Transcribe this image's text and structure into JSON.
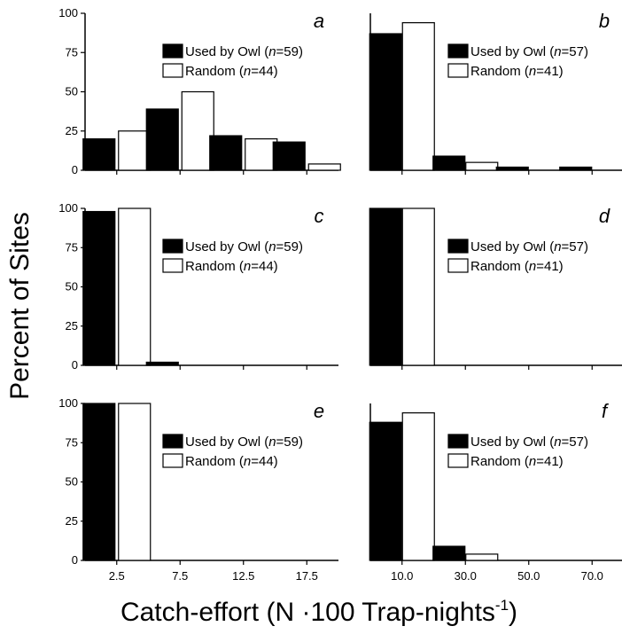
{
  "figure": {
    "ylabel": "Percent of Sites",
    "xlabel_main": "Catch-effort (N ·100 Trap-nights",
    "xlabel_exp": "-1",
    "xlabel_close": ")"
  },
  "chart_data": [
    {
      "type": "bar",
      "panel": "a",
      "categories": [
        "2.5",
        "7.5",
        "12.5",
        "17.5"
      ],
      "series": [
        {
          "name": "Used by Owl",
          "n_label": "(n=59)",
          "color": "#000000",
          "values": [
            20,
            39,
            22,
            18
          ]
        },
        {
          "name": "Random",
          "n_label": "(n=44)",
          "color": "#ffffff",
          "values": [
            25,
            50,
            20,
            4
          ]
        }
      ],
      "ylim": [
        0,
        100
      ],
      "yticks": [
        "0",
        "25",
        "50",
        "75",
        "100"
      ],
      "show_xticklabels": false
    },
    {
      "type": "bar",
      "panel": "b",
      "categories": [
        "10.0",
        "30.0",
        "50.0",
        "70.0"
      ],
      "series": [
        {
          "name": "Used by Owl",
          "n_label": "(n=57)",
          "color": "#000000",
          "values": [
            87,
            9,
            2,
            2
          ]
        },
        {
          "name": "Random",
          "n_label": "(n=41)",
          "color": "#ffffff",
          "values": [
            94,
            5,
            0,
            0
          ]
        }
      ],
      "ylim": [
        0,
        100
      ],
      "yticks": [],
      "show_xticklabels": false
    },
    {
      "type": "bar",
      "panel": "c",
      "categories": [
        "2.5",
        "7.5",
        "12.5",
        "17.5"
      ],
      "series": [
        {
          "name": "Used by Owl",
          "n_label": "(n=59)",
          "color": "#000000",
          "values": [
            98,
            2,
            0,
            0
          ]
        },
        {
          "name": "Random",
          "n_label": "(n=44)",
          "color": "#ffffff",
          "values": [
            100,
            0,
            0,
            0
          ]
        }
      ],
      "ylim": [
        0,
        100
      ],
      "yticks": [
        "0",
        "25",
        "50",
        "75",
        "100"
      ],
      "show_xticklabels": false
    },
    {
      "type": "bar",
      "panel": "d",
      "categories": [
        "10.0",
        "30.0",
        "50.0",
        "70.0"
      ],
      "series": [
        {
          "name": "Used by Owl",
          "n_label": "(n=57)",
          "color": "#000000",
          "values": [
            100,
            0,
            0,
            0
          ]
        },
        {
          "name": "Random",
          "n_label": "(n=41)",
          "color": "#ffffff",
          "values": [
            100,
            0,
            0,
            0
          ]
        }
      ],
      "ylim": [
        0,
        100
      ],
      "yticks": [],
      "show_xticklabels": false
    },
    {
      "type": "bar",
      "panel": "e",
      "categories": [
        "2.5",
        "7.5",
        "12.5",
        "17.5"
      ],
      "series": [
        {
          "name": "Used by Owl",
          "n_label": "(n=59)",
          "color": "#000000",
          "values": [
            100,
            0,
            0,
            0
          ]
        },
        {
          "name": "Random",
          "n_label": "(n=44)",
          "color": "#ffffff",
          "values": [
            100,
            0,
            0,
            0
          ]
        }
      ],
      "ylim": [
        0,
        100
      ],
      "yticks": [
        "0",
        "25",
        "50",
        "75",
        "100"
      ],
      "show_xticklabels": true
    },
    {
      "type": "bar",
      "panel": "f",
      "categories": [
        "10.0",
        "30.0",
        "50.0",
        "70.0"
      ],
      "series": [
        {
          "name": "Used by Owl",
          "n_label": "(n=57)",
          "color": "#000000",
          "values": [
            88,
            9,
            0,
            0
          ]
        },
        {
          "name": "Random",
          "n_label": "(n=41)",
          "color": "#ffffff",
          "values": [
            94,
            4,
            0,
            0
          ]
        }
      ],
      "ylim": [
        0,
        100
      ],
      "yticks": [],
      "show_xticklabels": true
    }
  ]
}
